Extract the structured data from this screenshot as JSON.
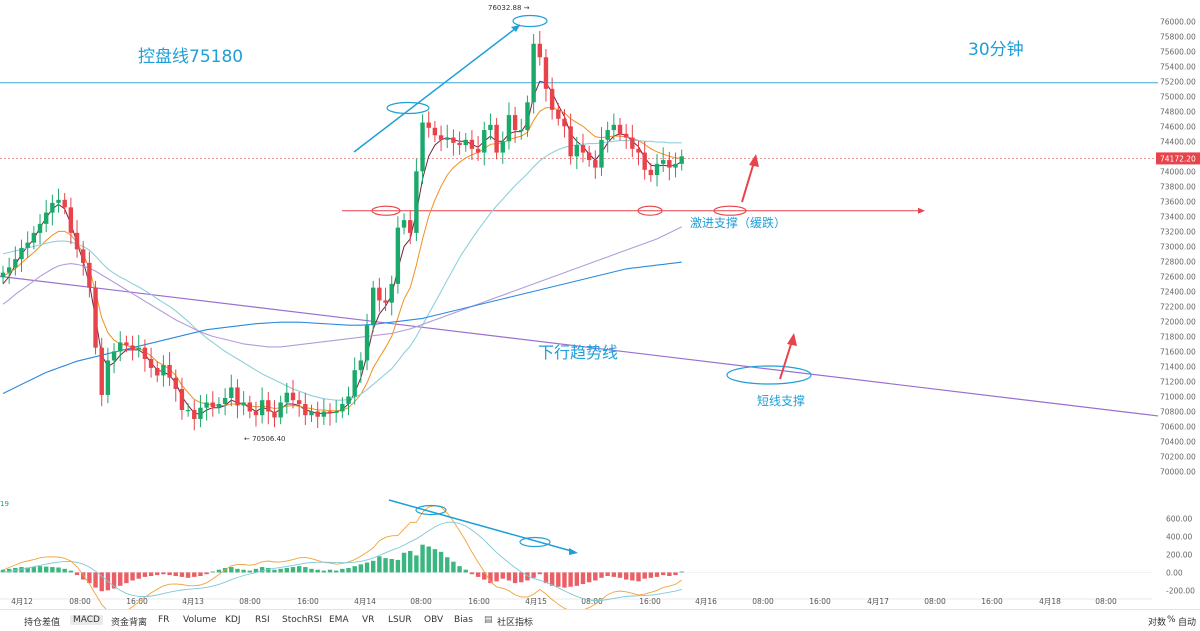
{
  "chart_data": {
    "type": "candlestick",
    "timeframe_label": "30分钟",
    "price_axis": {
      "ylim": [
        69900,
        76150
      ],
      "ticks": [
        76000,
        75800,
        75600,
        75400,
        75200,
        75000,
        74800,
        74600,
        74400,
        74200,
        74000,
        73800,
        73600,
        73400,
        73200,
        73000,
        72800,
        72600,
        72400,
        72200,
        72000,
        71800,
        71600,
        71400,
        71200,
        71000,
        70800,
        70600,
        70400,
        70200,
        70000
      ],
      "current_price_label": "74172.20",
      "current_price": 74172.2,
      "high_label": "76032.88",
      "low_label": "70506.40"
    },
    "macd_axis": {
      "ylim": [
        -230,
        720
      ],
      "ticks": [
        600,
        400,
        200,
        0,
        -200
      ],
      "corner_label": "19"
    },
    "x_labels": [
      "4月12",
      "08:00",
      "16:00",
      "4月13",
      "08:00",
      "16:00",
      "4月14",
      "08:00",
      "16:00",
      "4月15",
      "08:00",
      "16:00",
      "4月16",
      "08:00",
      "16:00",
      "4月17",
      "08:00",
      "16:00",
      "4月18",
      "08:00"
    ],
    "close_prices": [
      72650,
      72720,
      72830,
      72980,
      73050,
      73180,
      73300,
      73450,
      73580,
      73620,
      73520,
      73180,
      72960,
      72780,
      72450,
      71650,
      71020,
      71480,
      71600,
      71720,
      71680,
      71630,
      71650,
      71500,
      71380,
      71280,
      71420,
      71250,
      71100,
      70820,
      70820,
      70700,
      70850,
      70920,
      70860,
      70900,
      70980,
      71120,
      70880,
      70920,
      70800,
      70750,
      70950,
      70800,
      70720,
      70920,
      71050,
      70950,
      70900,
      70750,
      70800,
      70730,
      70800,
      70780,
      70800,
      70900,
      71000,
      71350,
      71480,
      71950,
      72450,
      72280,
      72250,
      72500,
      73250,
      73350,
      73180,
      74000,
      74650,
      74580,
      74480,
      74420,
      74450,
      74380,
      74350,
      74420,
      74300,
      74250,
      74550,
      74620,
      74250,
      74400,
      74750,
      74550,
      74550,
      74920,
      75700,
      75520,
      75100,
      74820,
      74700,
      74600,
      74200,
      74350,
      74250,
      74150,
      74050,
      74420,
      74550,
      74620,
      74500,
      74450,
      74300,
      74250,
      74020,
      73950,
      74100,
      74150,
      74050,
      74100,
      74200
    ],
    "key_levels": {
      "consolidation": {
        "label": "控盘线75180",
        "price": 75180
      },
      "aggressive_support": {
        "label": "激进支撑（缓跌）",
        "price": 73475
      },
      "downtrend_line": {
        "label": "下行趋势线",
        "price_start": 72600,
        "price_end": 70740
      },
      "short_support": {
        "label": "短线支撑"
      }
    },
    "moving_averages": [
      {
        "color": "#7a1f3d",
        "values": [
          72500,
          72600,
          72750,
          72900,
          73000,
          73100,
          73250,
          73380,
          73500,
          73560,
          73500,
          73300,
          73050,
          72800,
          72500,
          72050,
          71550,
          71400,
          71450,
          71550,
          71620,
          71620,
          71620,
          71560,
          71450,
          71350,
          71330,
          71280,
          71180,
          71000,
          70880,
          70780,
          70760,
          70820,
          70850,
          70850,
          70880,
          70950,
          70920,
          70900,
          70850,
          70800,
          70850,
          70830,
          70780,
          70830,
          70900,
          70900,
          70880,
          70820,
          70800,
          70770,
          70780,
          70780,
          70790,
          70830,
          70900,
          71050,
          71250,
          71550,
          71900,
          72100,
          72200,
          72350,
          72700,
          73000,
          73100,
          73450,
          73900,
          74200,
          74350,
          74420,
          74450,
          74420,
          74400,
          74400,
          74360,
          74320,
          74400,
          74470,
          74400,
          74400,
          74500,
          74530,
          74530,
          74650,
          75000,
          75200,
          75180,
          75050,
          74880,
          74730,
          74500,
          74400,
          74330,
          74230,
          74150,
          74250,
          74380,
          74470,
          74500,
          74480,
          74400,
          74330,
          74180,
          74080,
          74070,
          74080,
          74070,
          74080,
          74130
        ]
      },
      {
        "color": "#f0901e",
        "values": [
          72600,
          72650,
          72700,
          72780,
          72850,
          72920,
          73000,
          73080,
          73150,
          73200,
          73200,
          73150,
          73050,
          72900,
          72700,
          72400,
          72050,
          71850,
          71750,
          71700,
          71680,
          71650,
          71640,
          71600,
          71540,
          71460,
          71420,
          71360,
          71280,
          71150,
          71050,
          70960,
          70920,
          70900,
          70890,
          70880,
          70880,
          70900,
          70900,
          70900,
          70880,
          70860,
          70870,
          70860,
          70840,
          70850,
          70870,
          70880,
          70870,
          70850,
          70840,
          70820,
          70820,
          70810,
          70810,
          70820,
          70850,
          70930,
          71030,
          71180,
          71380,
          71520,
          71650,
          71800,
          72050,
          72300,
          72450,
          72750,
          73100,
          73400,
          73620,
          73800,
          73950,
          74050,
          74120,
          74180,
          74220,
          74250,
          74300,
          74360,
          74370,
          74380,
          74420,
          74450,
          74470,
          74520,
          74680,
          74800,
          74850,
          74850,
          74820,
          74780,
          74700,
          74650,
          74600,
          74530,
          74460,
          74450,
          74460,
          74470,
          74470,
          74460,
          74440,
          74410,
          74360,
          74300,
          74260,
          74230,
          74200,
          74180,
          74170
        ]
      },
      {
        "color": "#8fd0dc",
        "values": [
          72900,
          72920,
          72940,
          72960,
          72980,
          73000,
          73020,
          73040,
          73060,
          73070,
          73070,
          73060,
          73030,
          73000,
          72950,
          72870,
          72780,
          72700,
          72640,
          72590,
          72550,
          72500,
          72460,
          72410,
          72360,
          72300,
          72250,
          72200,
          72140,
          72070,
          72000,
          71920,
          71850,
          71780,
          71720,
          71660,
          71600,
          71550,
          71500,
          71450,
          71400,
          71350,
          71300,
          71260,
          71220,
          71180,
          71140,
          71100,
          71070,
          71040,
          71010,
          70990,
          70970,
          70960,
          70950,
          70950,
          70960,
          70990,
          71030,
          71090,
          71160,
          71230,
          71300,
          71370,
          71470,
          71580,
          71670,
          71800,
          71950,
          72100,
          72250,
          72400,
          72550,
          72700,
          72850,
          72980,
          73100,
          73220,
          73330,
          73440,
          73540,
          73630,
          73720,
          73810,
          73890,
          73970,
          74060,
          74140,
          74200,
          74250,
          74290,
          74320,
          74340,
          74350,
          74360,
          74370,
          74370,
          74380,
          74390,
          74400,
          74410,
          74410,
          74410,
          74410,
          74400,
          74400,
          74390,
          74390,
          74380,
          74380,
          74380
        ]
      },
      {
        "color": "#b39ddb",
        "values": [
          72230,
          72290,
          72360,
          72420,
          72480,
          72540,
          72600,
          72650,
          72700,
          72740,
          72760,
          72770,
          72760,
          72740,
          72710,
          72670,
          72620,
          72570,
          72520,
          72470,
          72420,
          72370,
          72320,
          72270,
          72220,
          72170,
          72120,
          72070,
          72020,
          71980,
          71940,
          71900,
          71860,
          71830,
          71800,
          71780,
          71760,
          71740,
          71720,
          71700,
          71690,
          71680,
          71670,
          71660,
          71660,
          71660,
          71670,
          71680,
          71690,
          71700,
          71710,
          71720,
          71730,
          71740,
          71750,
          71760,
          71770,
          71780,
          71790,
          71800,
          71810,
          71820,
          71830,
          71840,
          71860,
          71880,
          71900,
          71930,
          71960,
          71990,
          72020,
          72050,
          72080,
          72110,
          72140,
          72170,
          72200,
          72230,
          72260,
          72290,
          72320,
          72350,
          72380,
          72410,
          72440,
          72470,
          72500,
          72530,
          72560,
          72590,
          72620,
          72650,
          72680,
          72710,
          72740,
          72770,
          72800,
          72830,
          72860,
          72890,
          72920,
          72950,
          72980,
          73010,
          73040,
          73070,
          73100,
          73140,
          73180,
          73220,
          73260
        ]
      },
      {
        "color": "#2b8ae0",
        "values": [
          71040,
          71080,
          71120,
          71160,
          71200,
          71240,
          71280,
          71320,
          71350,
          71380,
          71410,
          71440,
          71470,
          71490,
          71510,
          71530,
          71550,
          71570,
          71590,
          71610,
          71630,
          71650,
          71670,
          71690,
          71710,
          71730,
          71750,
          71770,
          71790,
          71810,
          71830,
          71850,
          71870,
          71890,
          71900,
          71910,
          71920,
          71930,
          71940,
          71950,
          71960,
          71970,
          71975,
          71980,
          71985,
          71990,
          71990,
          71990,
          71990,
          71985,
          71980,
          71975,
          71970,
          71965,
          71960,
          71955,
          71950,
          71950,
          71950,
          71955,
          71960,
          71970,
          71980,
          71990,
          72000,
          72010,
          72020,
          72030,
          72040,
          72060,
          72080,
          72100,
          72120,
          72140,
          72160,
          72180,
          72200,
          72220,
          72240,
          72260,
          72280,
          72300,
          72320,
          72340,
          72360,
          72380,
          72400,
          72420,
          72440,
          72460,
          72480,
          72500,
          72520,
          72540,
          72560,
          72580,
          72600,
          72620,
          72640,
          72660,
          72680,
          72700,
          72710,
          72720,
          72730,
          72740,
          72750,
          72760,
          72770,
          72780,
          72790
        ]
      }
    ],
    "macd_histogram": [
      30,
      40,
      50,
      60,
      55,
      60,
      70,
      65,
      60,
      55,
      40,
      20,
      -30,
      -80,
      -120,
      -170,
      -210,
      -200,
      -180,
      -150,
      -120,
      -90,
      -70,
      -50,
      -40,
      -30,
      -20,
      -30,
      -40,
      -50,
      -60,
      -50,
      -40,
      -20,
      10,
      30,
      50,
      60,
      40,
      30,
      20,
      40,
      60,
      50,
      30,
      40,
      50,
      60,
      70,
      60,
      40,
      30,
      20,
      30,
      20,
      40,
      50,
      70,
      90,
      110,
      130,
      180,
      160,
      150,
      140,
      220,
      240,
      190,
      310,
      290,
      260,
      230,
      170,
      120,
      70,
      30,
      -20,
      -50,
      -80,
      -120,
      -100,
      -70,
      -90,
      -120,
      -110,
      -90,
      -60,
      -20,
      -120,
      -150,
      -160,
      -170,
      -160,
      -150,
      -130,
      -110,
      -90,
      -60,
      -40,
      -50,
      -60,
      -80,
      -90,
      -100,
      -70,
      -60,
      -50,
      -30,
      -40,
      -30,
      10
    ]
  },
  "annotations": {
    "consolidation_text": "控盘线75180",
    "timeframe_text": "30分钟",
    "aggressive_support_text": "激进支撑（缓跌）",
    "downtrend_text": "下行趋势线",
    "short_support_text": "短线支撑"
  },
  "toolbar": {
    "items": [
      "持仓差值",
      "MACD",
      "资金背离",
      "FR",
      "Volume",
      "KDJ",
      "RSI",
      "StochRSI",
      "EMA",
      "VR",
      "LSUR",
      "OBV",
      "Bias",
      "社区指标"
    ],
    "active": "MACD",
    "right_items": [
      "对数",
      "%",
      "自动"
    ]
  },
  "colors": {
    "up": "#1aa96a",
    "down": "#e8424a",
    "annotation_blue": "#1e9fd8",
    "arrow_red": "#e8424a"
  }
}
